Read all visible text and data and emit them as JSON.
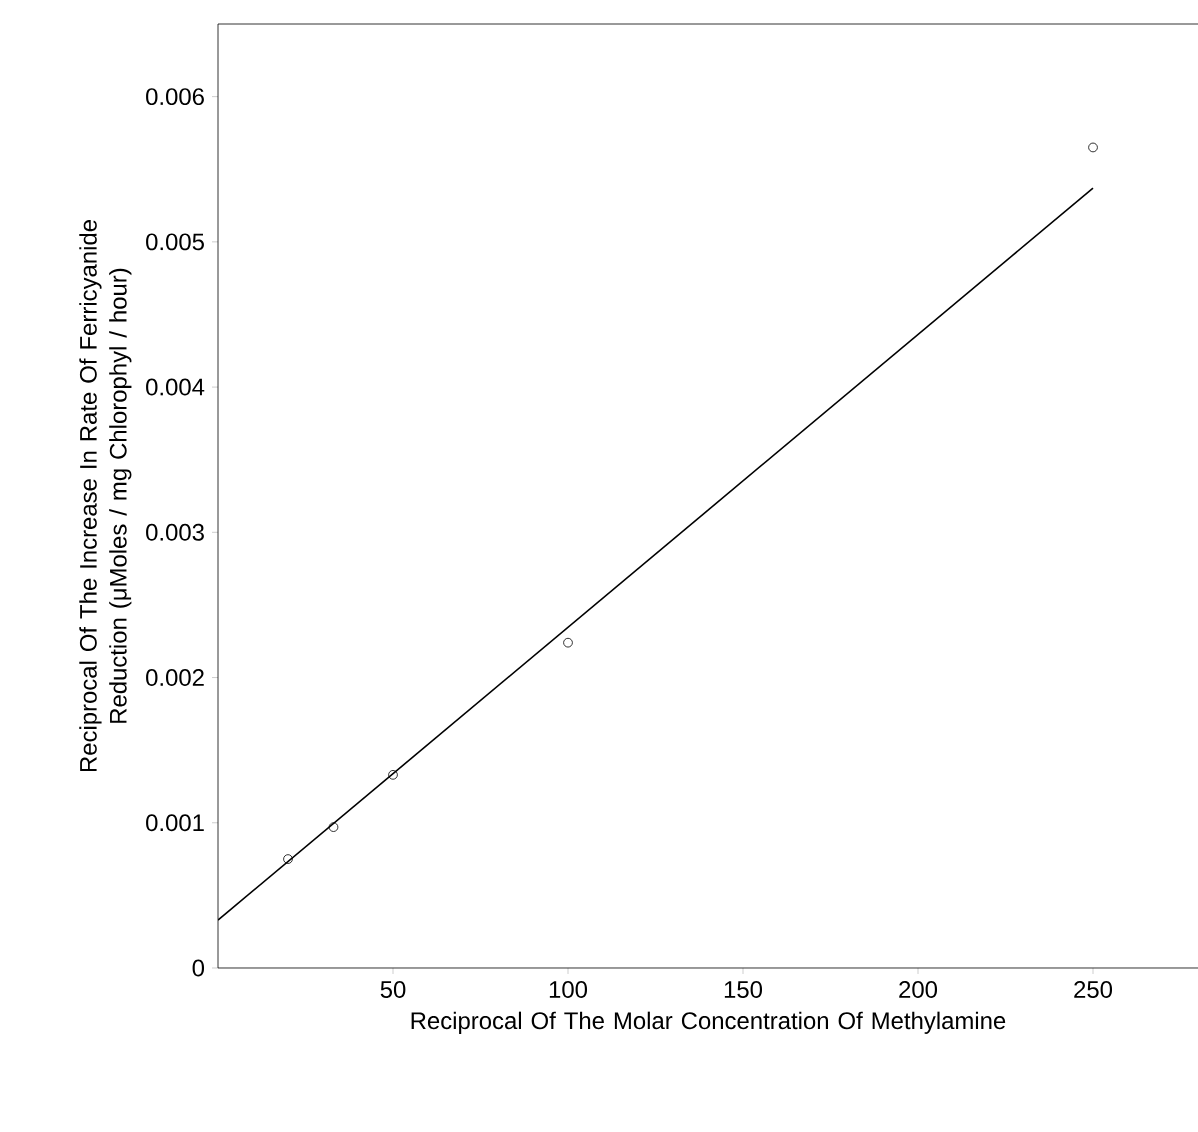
{
  "chart_data": {
    "type": "scatter",
    "xlabel": "Reciprocal Of The Molar Concentration Of Methylamine",
    "ylabel": "Reciprocal Of The Increase In Rate Of Ferricyanide Reduction (μMoles / mg Chlorophyl / hour)",
    "series": [
      {
        "color": "#000000",
        "marker": "circle",
        "x": [
          20,
          33,
          50,
          100,
          250
        ],
        "values": [
          0.00075,
          0.00097,
          0.00133,
          0.00224,
          0.00565
        ]
      },
      {
        "type": "line",
        "color": "#000000",
        "marker": "none",
        "x": [
          0,
          250
        ],
        "values": [
          0.00033,
          0.00537
        ]
      }
    ],
    "xlim": [
      0,
      280
    ],
    "ylim": [
      0,
      0.0065
    ],
    "xticks": [
      50,
      100,
      150,
      200,
      250
    ],
    "yticks": [
      0,
      0.001,
      0.002,
      0.003,
      0.004,
      0.005,
      0.006
    ],
    "grid": false
  }
}
